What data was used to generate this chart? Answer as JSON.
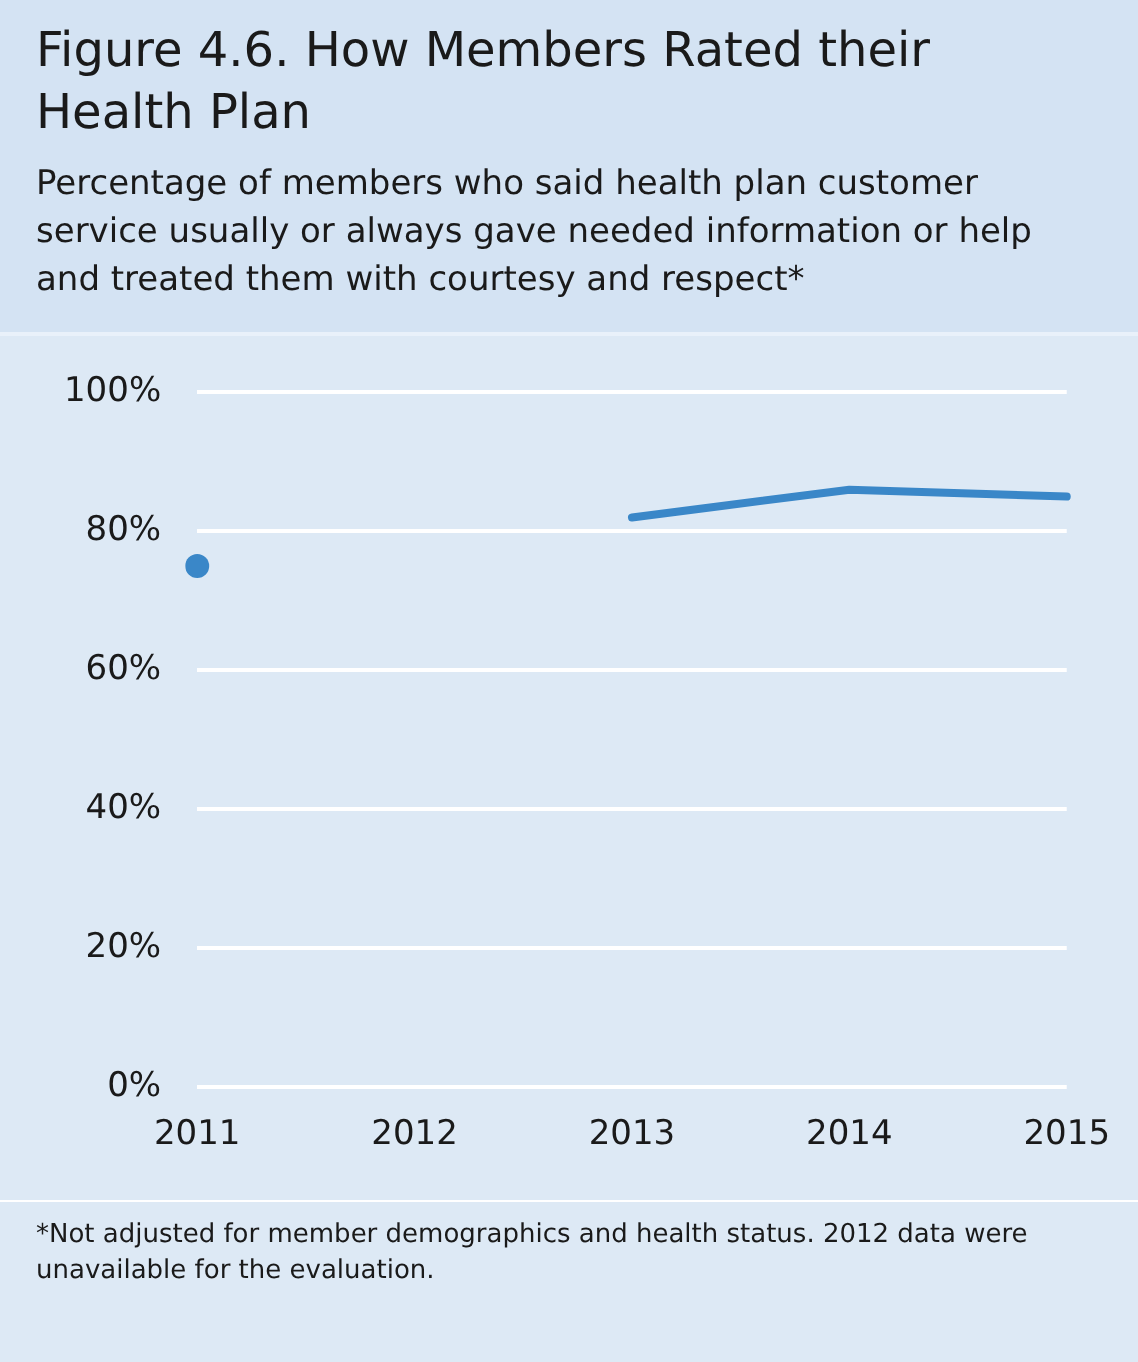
{
  "chart_data": {
    "type": "line",
    "title": "Figure 4.6. How Members Rated their Health Plan",
    "subtitle": "Percentage of members who said health plan customer service usually or always gave needed information or help and treated them with courtesy and respect*",
    "categories": [
      "2011",
      "2012",
      "2013",
      "2014",
      "2015"
    ],
    "series": [
      {
        "color": "#3a87c8",
        "values": [
          75,
          null,
          82,
          86,
          85
        ]
      }
    ],
    "ylim": [
      0,
      100
    ],
    "yticks": [
      {
        "value": 0,
        "label": "0%"
      },
      {
        "value": 20,
        "label": "20%"
      },
      {
        "value": 40,
        "label": "40%"
      },
      {
        "value": 60,
        "label": "60%"
      },
      {
        "value": 80,
        "label": "80%"
      },
      {
        "value": 100,
        "label": "100%"
      }
    ],
    "grid": "y",
    "legend": false,
    "annotations": [
      "*Not adjusted for member demographics and health status. 2012 data were unavailable for the evaluation."
    ]
  }
}
